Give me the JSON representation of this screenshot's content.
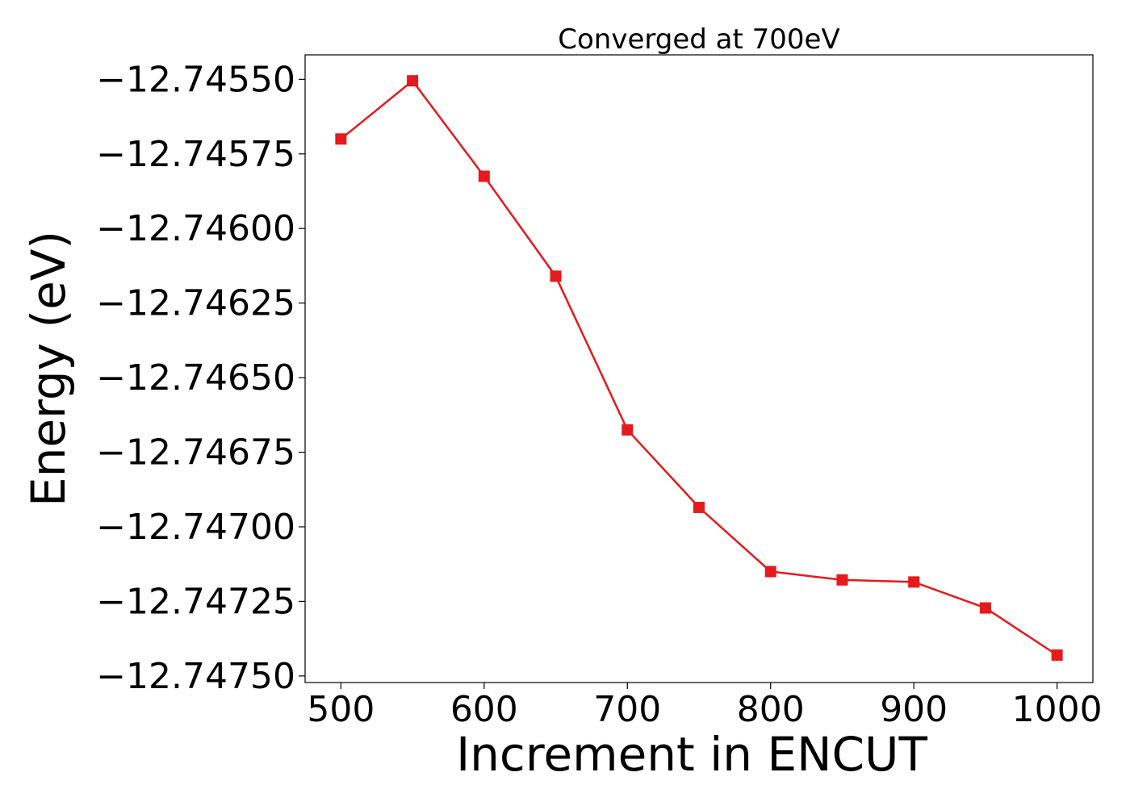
{
  "chart_data": {
    "type": "line",
    "title": "Converged at 700eV",
    "xlabel": "Increment in ENCUT",
    "ylabel": "Energy (eV)",
    "x": [
      500,
      550,
      600,
      650,
      700,
      750,
      800,
      850,
      900,
      950,
      1000
    ],
    "series": [
      {
        "name": "",
        "values": [
          -12.7457,
          -12.745505,
          -12.745825,
          -12.74616,
          -12.746675,
          -12.746935,
          -12.74715,
          -12.747178,
          -12.747185,
          -12.747272,
          -12.74743
        ],
        "color": "#e41a1c",
        "marker": "square"
      }
    ],
    "xticks": [
      500,
      600,
      700,
      800,
      900,
      1000
    ],
    "xtick_labels": [
      "500",
      "600",
      "700",
      "800",
      "900",
      "1000"
    ],
    "yticks": [
      -12.7455,
      -12.74575,
      -12.746,
      -12.74625,
      -12.7465,
      -12.74675,
      -12.747,
      -12.74725,
      -12.7475
    ],
    "ytick_labels": [
      "−12.74550",
      "−12.74575",
      "−12.74600",
      "−12.74625",
      "−12.74650",
      "−12.74675",
      "−12.74700",
      "−12.74725",
      "−12.74750"
    ],
    "xlim": [
      475,
      1025
    ],
    "ylim": [
      -12.747522,
      -12.745418
    ],
    "grid": false,
    "legend": "none"
  }
}
